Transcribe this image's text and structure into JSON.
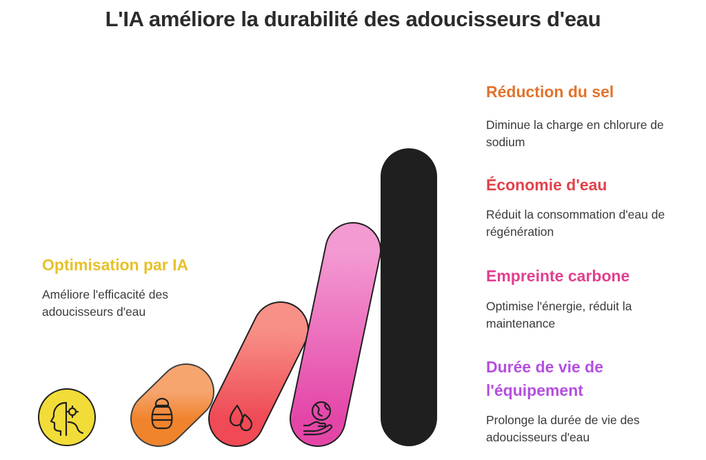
{
  "title": "L'IA améliore la durabilité des adoucisseurs d'eau",
  "colors": {
    "ia": "#e6c12a",
    "sel": "#e2732b",
    "eau": "#e2424b",
    "carbone": "#e0408f",
    "vie": "#b54fe0"
  },
  "items": [
    {
      "id": "ia",
      "label": "Optimisation par IA",
      "description": "Améliore l'efficacité des adoucisseurs d'eau",
      "icon": "ai-head-gear-icon"
    },
    {
      "id": "sel",
      "label": "Réduction du sel",
      "description": "Diminue la charge en chlorure de sodium",
      "icon": "salt-shaker-icon"
    },
    {
      "id": "eau",
      "label": "Économie d'eau",
      "description": "Réduit la consommation d'eau de régénération",
      "icon": "water-drops-icon"
    },
    {
      "id": "carbone",
      "label": "Empreinte carbone",
      "description": "Optimise l'énergie, réduit la maintenance",
      "icon": "globe-hand-icon"
    },
    {
      "id": "vie",
      "label": "Durée de vie de l'équipement",
      "description": "Prolonge la durée de vie des adoucisseurs d'eau",
      "icon": "heart-gear-icon"
    }
  ]
}
